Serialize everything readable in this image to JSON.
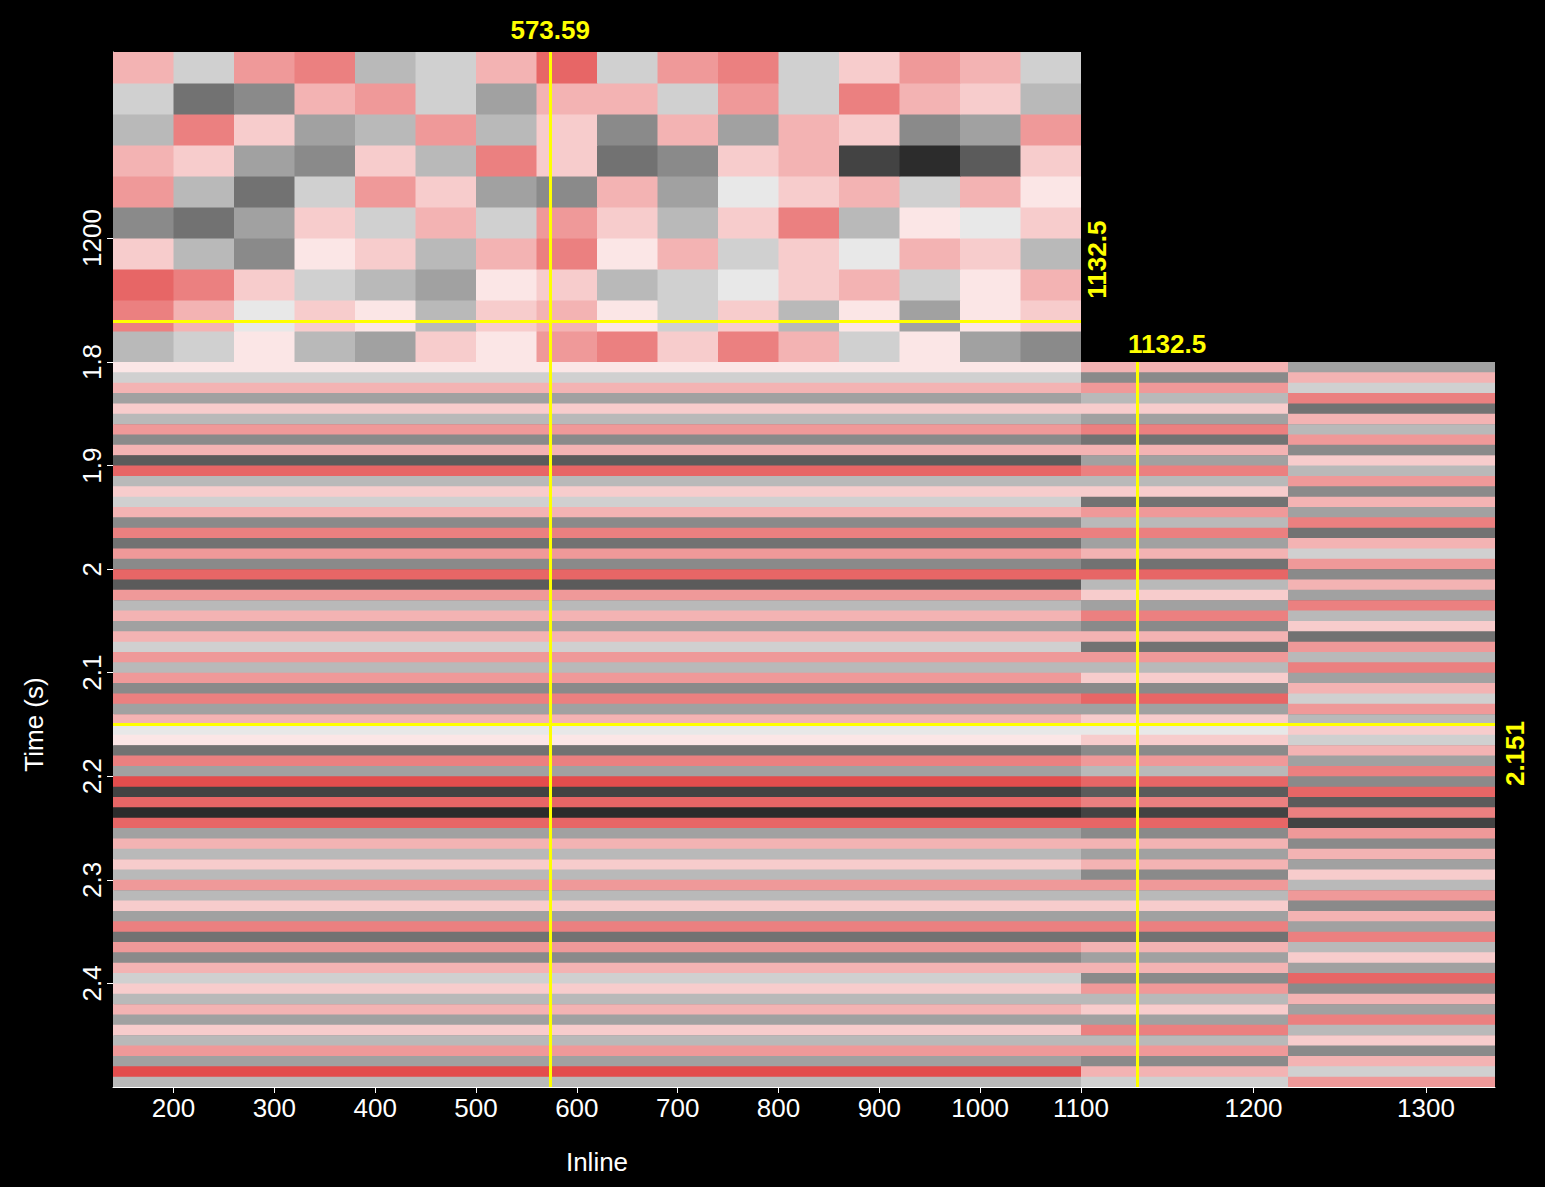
{
  "chart_data": [
    {
      "type": "heatmap",
      "xlim": [
        140,
        1100
      ],
      "ylim": [
        1100,
        1350
      ],
      "yticks": [
        1200
      ],
      "tick_labels": "y",
      "grid": false,
      "amplitude_range": [
        -1,
        1
      ],
      "x_edges": [
        140,
        200,
        260,
        320,
        380,
        440,
        500,
        560,
        620,
        680,
        740,
        800,
        860,
        920,
        980,
        1040,
        1100
      ],
      "y_edges": [
        1100,
        1125,
        1150,
        1175,
        1200,
        1225,
        1250,
        1275,
        1300,
        1325,
        1350
      ],
      "values": [
        [
          -0.3,
          -0.2,
          0.1,
          -0.3,
          -0.4,
          0.2,
          0.1,
          0.4,
          0.5,
          0.2,
          0.5,
          0.3,
          -0.2,
          0.1,
          -0.4,
          -0.5
        ],
        [
          0.5,
          0.3,
          -0.1,
          0.2,
          0.1,
          -0.3,
          0.2,
          0.3,
          0.1,
          -0.2,
          0.2,
          -0.3,
          0.1,
          -0.4,
          0.1,
          0.2
        ],
        [
          0.6,
          0.5,
          0.2,
          -0.2,
          -0.3,
          -0.4,
          0.1,
          0.2,
          -0.3,
          -0.2,
          -0.1,
          0.2,
          0.3,
          -0.2,
          0.1,
          0.3
        ],
        [
          0.2,
          -0.3,
          -0.5,
          0.1,
          0.2,
          -0.3,
          0.3,
          0.5,
          0.1,
          0.3,
          -0.2,
          0.2,
          -0.1,
          0.3,
          0.2,
          -0.3
        ],
        [
          -0.5,
          -0.6,
          -0.4,
          0.2,
          -0.2,
          0.3,
          -0.2,
          0.4,
          0.2,
          -0.3,
          0.2,
          0.5,
          -0.3,
          0.1,
          -0.1,
          0.2
        ],
        [
          0.4,
          -0.3,
          -0.6,
          -0.2,
          0.4,
          0.2,
          -0.4,
          -0.5,
          0.3,
          -0.4,
          -0.1,
          0.2,
          0.3,
          -0.2,
          0.3,
          0.1
        ],
        [
          0.3,
          0.2,
          -0.4,
          -0.5,
          0.2,
          -0.3,
          0.5,
          0.2,
          -0.6,
          -0.5,
          0.2,
          0.3,
          -0.8,
          -0.9,
          -0.7,
          0.2
        ],
        [
          -0.3,
          0.5,
          0.2,
          -0.4,
          -0.3,
          0.4,
          -0.3,
          0.2,
          -0.5,
          0.3,
          -0.4,
          0.3,
          0.2,
          -0.5,
          -0.4,
          0.4
        ],
        [
          -0.2,
          -0.6,
          -0.5,
          0.3,
          0.4,
          -0.2,
          -0.4,
          0.3,
          0.3,
          -0.2,
          0.4,
          -0.2,
          0.5,
          0.3,
          0.2,
          -0.3
        ],
        [
          0.3,
          -0.2,
          0.4,
          0.5,
          -0.3,
          -0.2,
          0.3,
          0.6,
          -0.2,
          0.4,
          0.5,
          -0.2,
          0.2,
          0.4,
          0.3,
          -0.2
        ]
      ],
      "crosshair": {
        "x": 573.59,
        "y": 1132.5
      }
    },
    {
      "type": "heatmap",
      "x_label": "Inline",
      "y_label": "Time (s)",
      "xlim": [
        140,
        1100
      ],
      "ylim": [
        1.8,
        2.5
      ],
      "xticks": [
        200,
        300,
        400,
        500,
        600,
        700,
        800,
        900,
        1000,
        1100
      ],
      "yticks": [
        1.8,
        1.9,
        2,
        2.1,
        2.2,
        2.3,
        2.4
      ],
      "grid": false,
      "amplitude_range": [
        -1,
        1
      ],
      "x_edges": [
        140,
        1100
      ],
      "y_edges": [
        1.8,
        1.81,
        1.82,
        1.83,
        1.84,
        1.85,
        1.86,
        1.87,
        1.88,
        1.89,
        1.9,
        1.91,
        1.92,
        1.93,
        1.94,
        1.95,
        1.96,
        1.97,
        1.98,
        1.99,
        2,
        2.01,
        2.02,
        2.03,
        2.04,
        2.05,
        2.06,
        2.07,
        2.08,
        2.09,
        2.1,
        2.11,
        2.12,
        2.13,
        2.14,
        2.15,
        2.16,
        2.17,
        2.18,
        2.19,
        2.2,
        2.21,
        2.22,
        2.23,
        2.24,
        2.25,
        2.26,
        2.27,
        2.28,
        2.29,
        2.3,
        2.31,
        2.32,
        2.33,
        2.34,
        2.35,
        2.36,
        2.37,
        2.38,
        2.39,
        2.4,
        2.41,
        2.42,
        2.43,
        2.44,
        2.45,
        2.46,
        2.47,
        2.48,
        2.49,
        2.5
      ],
      "values": [
        [
          0.1
        ],
        [
          -0.2
        ],
        [
          0.3
        ],
        [
          -0.4
        ],
        [
          0.2
        ],
        [
          -0.3
        ],
        [
          0.4
        ],
        [
          -0.5
        ],
        [
          0.3
        ],
        [
          -0.7
        ],
        [
          0.6
        ],
        [
          -0.3
        ],
        [
          0.2
        ],
        [
          -0.2
        ],
        [
          0.3
        ],
        [
          -0.5
        ],
        [
          0.5
        ],
        [
          -0.6
        ],
        [
          0.4
        ],
        [
          -0.5
        ],
        [
          0.6
        ],
        [
          -0.7
        ],
        [
          0.4
        ],
        [
          -0.3
        ],
        [
          0.3
        ],
        [
          -0.4
        ],
        [
          0.3
        ],
        [
          -0.2
        ],
        [
          0.4
        ],
        [
          -0.3
        ],
        [
          0.4
        ],
        [
          -0.5
        ],
        [
          0.5
        ],
        [
          -0.4
        ],
        [
          0.3
        ],
        [
          -0.1
        ],
        [
          0.1
        ],
        [
          -0.6
        ],
        [
          0.5
        ],
        [
          -0.4
        ],
        [
          0.7
        ],
        [
          -0.8
        ],
        [
          0.6
        ],
        [
          -0.9
        ],
        [
          0.6
        ],
        [
          -0.4
        ],
        [
          0.3
        ],
        [
          -0.3
        ],
        [
          0.2
        ],
        [
          -0.3
        ],
        [
          0.4
        ],
        [
          -0.3
        ],
        [
          0.2
        ],
        [
          -0.4
        ],
        [
          0.5
        ],
        [
          -0.6
        ],
        [
          0.4
        ],
        [
          -0.5
        ],
        [
          0.3
        ],
        [
          -0.2
        ],
        [
          0.2
        ],
        [
          -0.3
        ],
        [
          0.3
        ],
        [
          -0.4
        ],
        [
          0.2
        ],
        [
          -0.3
        ],
        [
          0.4
        ],
        [
          -0.4
        ],
        [
          0.7
        ],
        [
          -0.3
        ]
      ]
    },
    {
      "type": "heatmap",
      "xlim": [
        1100,
        1340
      ],
      "ylim": [
        1.8,
        2.5
      ],
      "xticks": [
        1200,
        1300
      ],
      "tick_labels": "x",
      "grid": false,
      "amplitude_range": [
        -1,
        1
      ],
      "x_edges": [
        1100,
        1220,
        1340
      ],
      "y_edges": [
        1.8,
        1.81,
        1.82,
        1.83,
        1.84,
        1.85,
        1.86,
        1.87,
        1.88,
        1.89,
        1.9,
        1.91,
        1.92,
        1.93,
        1.94,
        1.95,
        1.96,
        1.97,
        1.98,
        1.99,
        2,
        2.01,
        2.02,
        2.03,
        2.04,
        2.05,
        2.06,
        2.07,
        2.08,
        2.09,
        2.1,
        2.11,
        2.12,
        2.13,
        2.14,
        2.15,
        2.16,
        2.17,
        2.18,
        2.19,
        2.2,
        2.21,
        2.22,
        2.23,
        2.24,
        2.25,
        2.26,
        2.27,
        2.28,
        2.29,
        2.3,
        2.31,
        2.32,
        2.33,
        2.34,
        2.35,
        2.36,
        2.37,
        2.38,
        2.39,
        2.4,
        2.41,
        2.42,
        2.43,
        2.44,
        2.45,
        2.46,
        2.47,
        2.48,
        2.49,
        2.5
      ],
      "values": [
        [
          0.3,
          -0.4
        ],
        [
          -0.5,
          0.3
        ],
        [
          0.4,
          -0.2
        ],
        [
          -0.3,
          0.5
        ],
        [
          0.2,
          -0.6
        ],
        [
          -0.4,
          0.3
        ],
        [
          0.5,
          -0.3
        ],
        [
          -0.6,
          0.4
        ],
        [
          0.3,
          -0.5
        ],
        [
          -0.4,
          0.2
        ],
        [
          0.5,
          -0.3
        ],
        [
          -0.3,
          0.4
        ],
        [
          0.2,
          -0.5
        ],
        [
          -0.6,
          0.3
        ],
        [
          0.4,
          -0.4
        ],
        [
          -0.3,
          0.5
        ],
        [
          0.5,
          -0.6
        ],
        [
          -0.4,
          0.3
        ],
        [
          0.3,
          -0.2
        ],
        [
          -0.6,
          0.4
        ],
        [
          0.6,
          -0.5
        ],
        [
          -0.3,
          0.3
        ],
        [
          0.2,
          -0.4
        ],
        [
          -0.4,
          0.5
        ],
        [
          0.5,
          -0.3
        ],
        [
          -0.5,
          0.2
        ],
        [
          0.3,
          -0.6
        ],
        [
          -0.6,
          0.4
        ],
        [
          0.4,
          -0.3
        ],
        [
          -0.3,
          0.5
        ],
        [
          0.2,
          -0.4
        ],
        [
          -0.5,
          0.3
        ],
        [
          0.6,
          -0.2
        ],
        [
          -0.4,
          0.4
        ],
        [
          0.2,
          -0.3
        ],
        [
          -0.1,
          0.2
        ],
        [
          0.2,
          -0.2
        ],
        [
          -0.5,
          0.3
        ],
        [
          0.4,
          -0.4
        ],
        [
          -0.3,
          0.5
        ],
        [
          0.6,
          -0.5
        ],
        [
          -0.7,
          0.6
        ],
        [
          0.5,
          -0.7
        ],
        [
          -0.8,
          0.5
        ],
        [
          0.6,
          -0.8
        ],
        [
          -0.5,
          0.4
        ],
        [
          0.3,
          -0.5
        ],
        [
          -0.4,
          0.3
        ],
        [
          0.3,
          -0.4
        ],
        [
          -0.5,
          0.2
        ],
        [
          0.4,
          -0.3
        ],
        [
          -0.3,
          0.4
        ],
        [
          0.2,
          -0.5
        ],
        [
          -0.4,
          0.3
        ],
        [
          0.5,
          -0.4
        ],
        [
          -0.6,
          0.5
        ],
        [
          0.3,
          -0.3
        ],
        [
          -0.4,
          0.2
        ],
        [
          0.3,
          -0.4
        ],
        [
          -0.5,
          0.6
        ],
        [
          0.4,
          -0.5
        ],
        [
          -0.3,
          0.3
        ],
        [
          0.2,
          -0.4
        ],
        [
          -0.4,
          0.5
        ],
        [
          0.5,
          -0.3
        ],
        [
          -0.3,
          0.2
        ],
        [
          0.4,
          -0.5
        ],
        [
          -0.5,
          0.3
        ],
        [
          0.3,
          -0.2
        ],
        [
          -0.2,
          0.4
        ]
      ],
      "crosshair": {
        "x": 1132.5,
        "y": 2.151
      }
    }
  ]
}
